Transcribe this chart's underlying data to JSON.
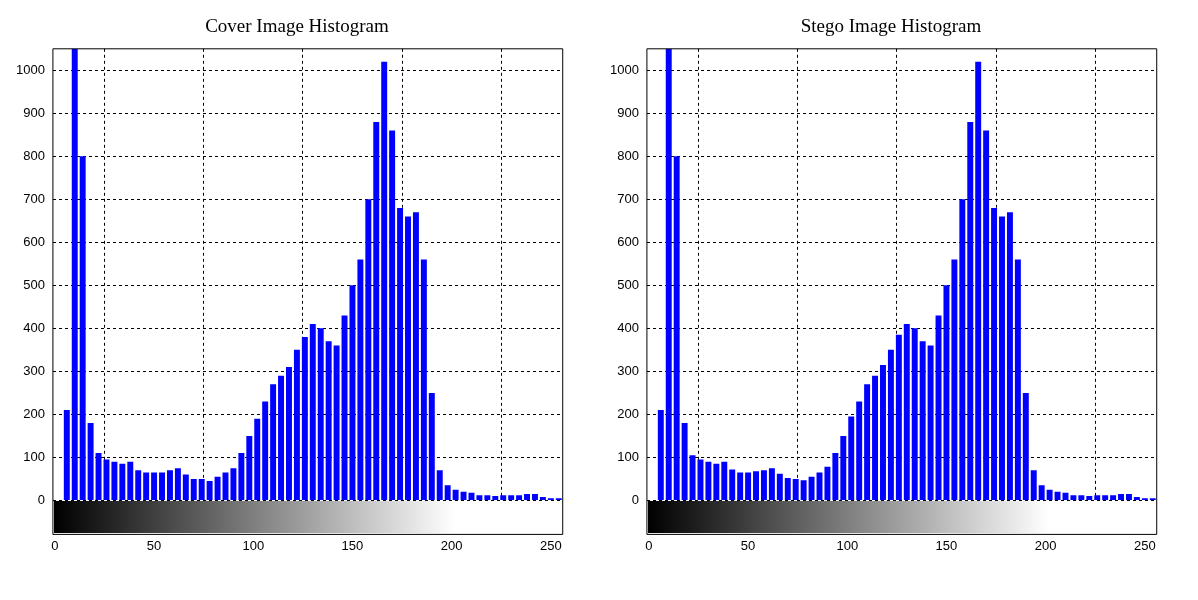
{
  "chart_data": [
    {
      "type": "histogram",
      "title": "Cover Image Histogram",
      "bins": [
        0,
        4,
        8,
        12,
        16,
        20,
        24,
        28,
        32,
        36,
        40,
        44,
        48,
        52,
        56,
        60,
        64,
        68,
        72,
        76,
        80,
        84,
        88,
        92,
        96,
        100,
        104,
        108,
        112,
        116,
        120,
        124,
        128,
        132,
        136,
        140,
        144,
        148,
        152,
        156,
        160,
        164,
        168,
        172,
        176,
        180,
        184,
        188,
        192,
        196,
        200,
        204,
        208,
        212,
        216,
        220,
        224,
        228,
        232,
        236,
        240,
        244,
        248,
        252,
        256
      ],
      "values": [
        0,
        210,
        1050,
        800,
        180,
        110,
        95,
        90,
        85,
        90,
        70,
        65,
        65,
        65,
        70,
        75,
        60,
        50,
        50,
        45,
        55,
        65,
        75,
        110,
        150,
        190,
        230,
        270,
        290,
        310,
        350,
        380,
        410,
        400,
        370,
        360,
        430,
        500,
        560,
        700,
        880,
        1020,
        860,
        680,
        660,
        670,
        560,
        250,
        70,
        35,
        25,
        20,
        18,
        12,
        12,
        10,
        12,
        12,
        12,
        15,
        15,
        8,
        5,
        5
      ],
      "color": "#0000ff",
      "xlim": [
        -1,
        256
      ],
      "ylim": [
        0,
        1050
      ],
      "xticks": [
        0,
        50,
        100,
        150,
        200,
        250
      ],
      "yticks": [
        0,
        100,
        200,
        300,
        400,
        500,
        600,
        700,
        800,
        900,
        1000
      ],
      "grid": true
    },
    {
      "type": "histogram",
      "title": "Stego Image Histogram",
      "bins": [
        0,
        4,
        8,
        12,
        16,
        20,
        24,
        28,
        32,
        36,
        40,
        44,
        48,
        52,
        56,
        60,
        64,
        68,
        72,
        76,
        80,
        84,
        88,
        92,
        96,
        100,
        104,
        108,
        112,
        116,
        120,
        124,
        128,
        132,
        136,
        140,
        144,
        148,
        152,
        156,
        160,
        164,
        168,
        172,
        176,
        180,
        184,
        188,
        192,
        196,
        200,
        204,
        208,
        212,
        216,
        220,
        224,
        228,
        232,
        236,
        240,
        244,
        248,
        252,
        256
      ],
      "values": [
        0,
        210,
        1050,
        800,
        180,
        105,
        95,
        90,
        85,
        90,
        72,
        65,
        65,
        68,
        70,
        75,
        62,
        52,
        50,
        47,
        55,
        65,
        78,
        110,
        150,
        195,
        230,
        270,
        290,
        315,
        350,
        385,
        410,
        400,
        370,
        360,
        430,
        500,
        560,
        700,
        880,
        1020,
        860,
        680,
        660,
        670,
        560,
        250,
        70,
        35,
        25,
        20,
        18,
        12,
        12,
        10,
        12,
        12,
        12,
        15,
        15,
        8,
        5,
        5
      ],
      "color": "#0000ff",
      "xlim": [
        -1,
        256
      ],
      "ylim": [
        0,
        1050
      ],
      "xticks": [
        0,
        50,
        100,
        150,
        200,
        250
      ],
      "yticks": [
        0,
        100,
        200,
        300,
        400,
        500,
        600,
        700,
        800,
        900,
        1000
      ],
      "grid": true
    }
  ]
}
